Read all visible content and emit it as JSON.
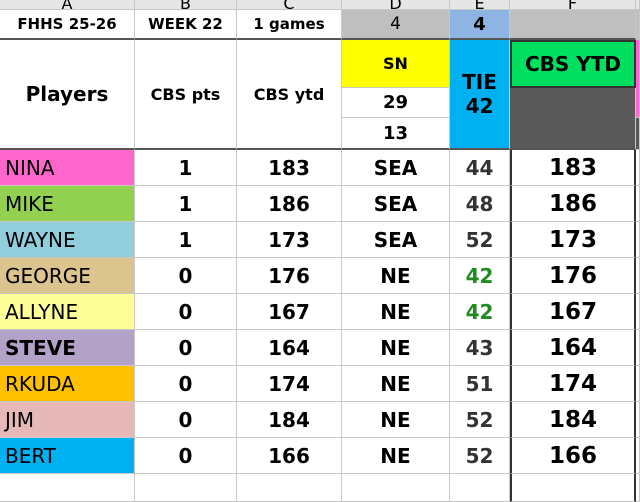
{
  "column_letters": [
    "A",
    "B",
    "C",
    "D",
    "E",
    "F"
  ],
  "info": {
    "league": "FHHS 25-26",
    "week": "WEEK 22",
    "games": "1 games",
    "d_count": 4,
    "e_count": 4
  },
  "header": {
    "players": "Players",
    "cbs_pts": "CBS pts",
    "cbs_ytd": "CBS ytd",
    "team1": "SN",
    "team1_score": 29,
    "team2_score": 13,
    "tie_label": "TIE",
    "tie_value": 42,
    "cbs_ytd_total": "CBS YTD"
  },
  "rows": [
    {
      "player": "NINA",
      "color": "#ff66cc",
      "cbs_pts": 1,
      "cbs_ytd": 183,
      "pick": "SEA",
      "tiebreak": 44,
      "ytd": 183
    },
    {
      "player": "MIKE",
      "color": "#92d050",
      "cbs_pts": 1,
      "cbs_ytd": 186,
      "pick": "SEA",
      "tiebreak": 48,
      "ytd": 186
    },
    {
      "player": "WAYNE",
      "color": "#92cddc",
      "cbs_pts": 1,
      "cbs_ytd": 173,
      "pick": "SEA",
      "tiebreak": 52,
      "ytd": 173
    },
    {
      "player": "GEORGE",
      "color": "#dcc48e",
      "cbs_pts": 0,
      "cbs_ytd": 176,
      "pick": "NE",
      "tiebreak": 42,
      "tiebreak_color": "#1e8c1e",
      "ytd": 176
    },
    {
      "player": "ALLYNE",
      "color": "#ffff99",
      "cbs_pts": 0,
      "cbs_ytd": 167,
      "pick": "NE",
      "tiebreak": 42,
      "tiebreak_color": "#1e8c1e",
      "ytd": 167
    },
    {
      "player": "STEVE",
      "color": "#b3a2c7",
      "bold": true,
      "cbs_pts": 0,
      "cbs_ytd": 164,
      "pick": "NE",
      "tiebreak": 43,
      "ytd": 164
    },
    {
      "player": "RKUDA",
      "color": "#ffc000",
      "cbs_pts": 0,
      "cbs_ytd": 174,
      "pick": "NE",
      "tiebreak": 51,
      "ytd": 174
    },
    {
      "player": "JIM",
      "color": "#e6b8b7",
      "cbs_pts": 0,
      "cbs_ytd": 184,
      "pick": "NE",
      "tiebreak": 52,
      "ytd": 184
    },
    {
      "player": "BERT",
      "color": "#00b0f0",
      "cbs_pts": 0,
      "cbs_ytd": 166,
      "pick": "NE",
      "tiebreak": 52,
      "ytd": 166
    }
  ]
}
